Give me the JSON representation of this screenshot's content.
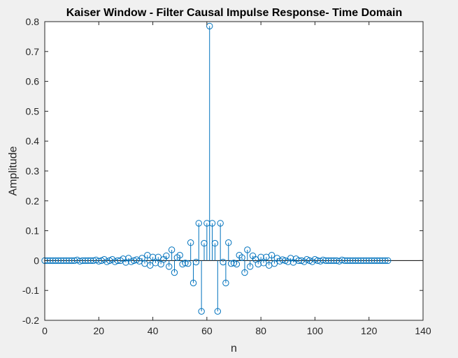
{
  "chart_data": {
    "type": "stem",
    "title": "Kaiser Window - Filter Causal Impulse Response- Time Domain",
    "xlabel": "n",
    "ylabel": "Amplitude",
    "xlim": [
      0,
      140
    ],
    "ylim": [
      -0.2,
      0.8
    ],
    "xticks": [
      0,
      20,
      40,
      60,
      80,
      100,
      120,
      140
    ],
    "xtick_labels": [
      "0",
      "20",
      "40",
      "60",
      "80",
      "100",
      "120",
      "140"
    ],
    "yticks": [
      -0.2,
      -0.1,
      0,
      0.1,
      0.2,
      0.3,
      0.4,
      0.5,
      0.6,
      0.7,
      0.8
    ],
    "ytick_labels": [
      "-0.2",
      "-0.1",
      "0",
      "0.1",
      "0.2",
      "0.3",
      "0.4",
      "0.5",
      "0.6",
      "0.7",
      "0.8"
    ],
    "grid": false,
    "series": [
      {
        "color": "#0072bd",
        "x": [
          0,
          1,
          2,
          3,
          4,
          5,
          6,
          7,
          8,
          9,
          10,
          11,
          12,
          13,
          14,
          15,
          16,
          17,
          18,
          19,
          20,
          21,
          22,
          23,
          24,
          25,
          26,
          27,
          28,
          29,
          30,
          31,
          32,
          33,
          34,
          35,
          36,
          37,
          38,
          39,
          40,
          41,
          42,
          43,
          44,
          45,
          46,
          47,
          48,
          49,
          50,
          51,
          52,
          53,
          54,
          55,
          56,
          57,
          58,
          59,
          60,
          61,
          62,
          63,
          64,
          65,
          66,
          67,
          68,
          69,
          70,
          71,
          72,
          73,
          74,
          75,
          76,
          77,
          78,
          79,
          80,
          81,
          82,
          83,
          84,
          85,
          86,
          87,
          88,
          89,
          90,
          91,
          92,
          93,
          94,
          95,
          96,
          97,
          98,
          99,
          100,
          101,
          102,
          103,
          104,
          105,
          106,
          107,
          108,
          109,
          110,
          111,
          112,
          113,
          114,
          115,
          116,
          117,
          118,
          119,
          120,
          121,
          122,
          123,
          124,
          125,
          126,
          127
        ],
        "y": [
          0,
          0,
          0,
          0,
          0,
          0,
          0,
          0,
          0,
          0,
          0,
          0,
          0.002,
          -0.002,
          0,
          0,
          0,
          0,
          0,
          0.002,
          -0.002,
          0,
          0.004,
          -0.004,
          0,
          0.004,
          -0.004,
          0,
          0,
          0.006,
          -0.006,
          0.008,
          -0.004,
          0,
          0.003,
          -0.002,
          0.008,
          -0.01,
          0.018,
          -0.016,
          0.012,
          -0.008,
          0.012,
          -0.012,
          0.004,
          0.016,
          -0.02,
          0.036,
          -0.04,
          0.01,
          0.018,
          -0.012,
          -0.008,
          -0.01,
          0.06,
          -0.075,
          -0.005,
          0.125,
          -0.17,
          0.058,
          0.125,
          0.785,
          0.125,
          0.058,
          -0.17,
          0.125,
          -0.005,
          -0.075,
          0.06,
          -0.01,
          -0.008,
          -0.012,
          0.018,
          0.01,
          -0.04,
          0.036,
          -0.02,
          0.016,
          0.004,
          -0.012,
          0.012,
          -0.008,
          0.012,
          -0.016,
          0.018,
          -0.01,
          0.008,
          -0.002,
          0.003,
          0,
          -0.004,
          0.008,
          -0.006,
          0.006,
          0,
          0,
          -0.004,
          0.004,
          0,
          -0.004,
          0.004,
          0,
          -0.002,
          0.002,
          0,
          0,
          0,
          0,
          0,
          -0.002,
          0.002,
          0,
          0,
          0,
          0,
          0,
          0,
          0,
          0,
          0,
          0,
          0,
          0,
          0,
          0,
          0,
          0,
          0
        ]
      }
    ]
  }
}
